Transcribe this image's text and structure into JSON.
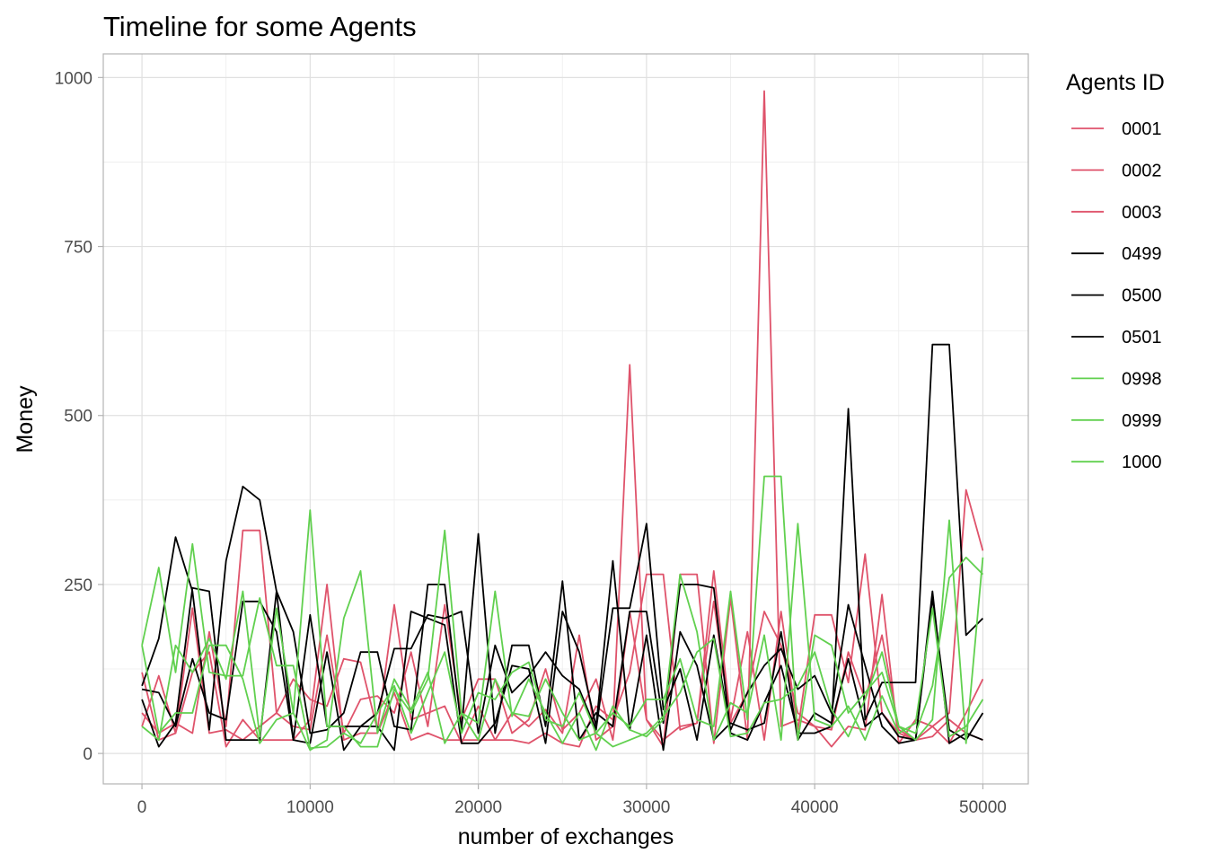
{
  "chart_data": {
    "type": "line",
    "title": "Timeline for some Agents",
    "xlabel": "number of exchanges",
    "ylabel": "Money",
    "xlim": [
      -2300,
      52700
    ],
    "ylim": [
      -45,
      1035
    ],
    "x_ticks": [
      0,
      10000,
      20000,
      30000,
      40000,
      50000
    ],
    "x_tick_labels": [
      "0",
      "10000",
      "20000",
      "30000",
      "40000",
      "50000"
    ],
    "y_ticks": [
      0,
      250,
      500,
      750,
      1000
    ],
    "y_tick_labels": [
      "0",
      "250",
      "500",
      "750",
      "1000"
    ],
    "grid": true,
    "legend": {
      "title": "Agents ID",
      "position": "right"
    },
    "series": [
      {
        "name": "0001",
        "color": "#df536b",
        "x": [
          0,
          1000,
          2000,
          3000,
          4000,
          5000,
          6000,
          7000,
          8000,
          9000,
          10000,
          11000,
          12000,
          13000,
          14000,
          15000,
          16000,
          17000,
          18000,
          19000,
          20000,
          21000,
          22000,
          23000,
          24000,
          25000,
          26000,
          27000,
          28000,
          29000,
          30000,
          31000,
          32000,
          33000,
          34000,
          35000,
          36000,
          37000,
          38000,
          39000,
          40000,
          41000,
          42000,
          43000,
          44000,
          45000,
          46000,
          47000,
          48000,
          49000,
          50000
        ],
        "y": [
          40,
          115,
          30,
          215,
          30,
          35,
          20,
          40,
          60,
          110,
          80,
          70,
          140,
          135,
          35,
          220,
          50,
          60,
          70,
          15,
          70,
          20,
          60,
          40,
          65,
          30,
          175,
          20,
          40,
          575,
          50,
          10,
          265,
          265,
          15,
          230,
          20,
          980,
          40,
          50,
          40,
          10,
          40,
          35,
          235,
          15,
          50,
          40,
          15,
          60,
          110
        ]
      },
      {
        "name": "0002",
        "color": "#df536b",
        "x": [
          0,
          1000,
          2000,
          3000,
          4000,
          5000,
          6000,
          7000,
          8000,
          9000,
          10000,
          11000,
          12000,
          13000,
          14000,
          15000,
          16000,
          17000,
          18000,
          19000,
          20000,
          21000,
          22000,
          23000,
          24000,
          25000,
          26000,
          27000,
          28000,
          29000,
          30000,
          31000,
          32000,
          33000,
          34000,
          35000,
          36000,
          37000,
          38000,
          39000,
          40000,
          41000,
          42000,
          43000,
          44000,
          45000,
          46000,
          47000,
          48000,
          49000,
          50000
        ],
        "y": [
          60,
          30,
          45,
          30,
          180,
          40,
          330,
          330,
          60,
          40,
          35,
          175,
          30,
          80,
          85,
          60,
          150,
          40,
          220,
          50,
          110,
          110,
          30,
          50,
          125,
          35,
          60,
          110,
          20,
          210,
          50,
          20,
          40,
          45,
          270,
          50,
          180,
          20,
          210,
          35,
          205,
          205,
          105,
          295,
          60,
          30,
          20,
          40,
          60,
          390,
          300
        ]
      },
      {
        "name": "0003",
        "color": "#df536b",
        "x": [
          0,
          1000,
          2000,
          3000,
          4000,
          5000,
          6000,
          7000,
          8000,
          9000,
          10000,
          11000,
          12000,
          13000,
          14000,
          15000,
          16000,
          17000,
          18000,
          19000,
          20000,
          21000,
          22000,
          23000,
          24000,
          25000,
          26000,
          27000,
          28000,
          29000,
          30000,
          31000,
          32000,
          33000,
          34000,
          35000,
          36000,
          37000,
          38000,
          39000,
          40000,
          41000,
          42000,
          43000,
          44000,
          45000,
          46000,
          47000,
          48000,
          49000,
          50000
        ],
        "y": [
          120,
          20,
          30,
          120,
          150,
          10,
          50,
          20,
          20,
          20,
          50,
          250,
          20,
          30,
          30,
          90,
          20,
          30,
          20,
          20,
          20,
          20,
          20,
          15,
          30,
          15,
          10,
          70,
          50,
          120,
          265,
          265,
          35,
          45,
          225,
          45,
          90,
          210,
          160,
          60,
          40,
          35,
          150,
          80,
          175,
          35,
          20,
          25,
          50,
          30,
          20
        ]
      },
      {
        "name": "0499",
        "color": "#000000",
        "x": [
          0,
          1000,
          2000,
          3000,
          4000,
          5000,
          6000,
          7000,
          8000,
          9000,
          10000,
          11000,
          12000,
          13000,
          14000,
          15000,
          16000,
          17000,
          18000,
          19000,
          20000,
          21000,
          22000,
          23000,
          24000,
          25000,
          26000,
          27000,
          28000,
          29000,
          30000,
          31000,
          32000,
          33000,
          34000,
          35000,
          36000,
          37000,
          38000,
          39000,
          40000,
          41000,
          42000,
          43000,
          44000,
          45000,
          46000,
          47000,
          48000,
          49000,
          50000
        ],
        "y": [
          100,
          170,
          320,
          240,
          35,
          285,
          395,
          375,
          240,
          180,
          30,
          35,
          60,
          150,
          150,
          40,
          35,
          250,
          250,
          35,
          325,
          30,
          160,
          160,
          40,
          255,
          20,
          60,
          40,
          210,
          210,
          45,
          250,
          250,
          245,
          30,
          20,
          75,
          130,
          30,
          30,
          40,
          510,
          50,
          105,
          105,
          105,
          605,
          605,
          175,
          200
        ]
      },
      {
        "name": "0500",
        "color": "#000000",
        "x": [
          0,
          1000,
          2000,
          3000,
          4000,
          5000,
          6000,
          7000,
          8000,
          9000,
          10000,
          11000,
          12000,
          13000,
          14000,
          15000,
          16000,
          17000,
          18000,
          19000,
          20000,
          21000,
          22000,
          23000,
          24000,
          25000,
          26000,
          27000,
          28000,
          29000,
          30000,
          31000,
          32000,
          33000,
          34000,
          35000,
          36000,
          37000,
          38000,
          39000,
          40000,
          41000,
          42000,
          43000,
          44000,
          45000,
          46000,
          47000,
          48000,
          49000,
          50000
        ],
        "y": [
          80,
          10,
          45,
          245,
          240,
          20,
          20,
          20,
          240,
          20,
          15,
          150,
          5,
          40,
          40,
          5,
          210,
          200,
          190,
          15,
          15,
          45,
          130,
          125,
          15,
          210,
          150,
          40,
          285,
          35,
          175,
          5,
          180,
          130,
          20,
          45,
          35,
          45,
          180,
          20,
          60,
          45,
          140,
          40,
          60,
          25,
          20,
          240,
          15,
          30,
          20
        ]
      },
      {
        "name": "0501",
        "color": "#000000",
        "x": [
          0,
          1000,
          2000,
          3000,
          4000,
          5000,
          6000,
          7000,
          8000,
          9000,
          10000,
          11000,
          12000,
          13000,
          14000,
          15000,
          16000,
          17000,
          18000,
          19000,
          20000,
          21000,
          22000,
          23000,
          24000,
          25000,
          26000,
          27000,
          28000,
          29000,
          30000,
          31000,
          32000,
          33000,
          34000,
          35000,
          36000,
          37000,
          38000,
          39000,
          40000,
          41000,
          42000,
          43000,
          44000,
          45000,
          46000,
          47000,
          48000,
          49000,
          50000
        ],
        "y": [
          95,
          90,
          40,
          140,
          60,
          50,
          225,
          225,
          180,
          20,
          205,
          40,
          40,
          40,
          60,
          155,
          155,
          205,
          200,
          210,
          30,
          160,
          90,
          115,
          150,
          115,
          95,
          35,
          215,
          215,
          340,
          65,
          125,
          20,
          175,
          35,
          90,
          130,
          155,
          95,
          115,
          60,
          220,
          130,
          40,
          15,
          20,
          230,
          35,
          20,
          60
        ]
      },
      {
        "name": "0998",
        "color": "#61d04f",
        "x": [
          0,
          1000,
          2000,
          3000,
          4000,
          5000,
          6000,
          7000,
          8000,
          9000,
          10000,
          11000,
          12000,
          13000,
          14000,
          15000,
          16000,
          17000,
          18000,
          19000,
          20000,
          21000,
          22000,
          23000,
          24000,
          25000,
          26000,
          27000,
          28000,
          29000,
          30000,
          31000,
          32000,
          33000,
          34000,
          35000,
          36000,
          37000,
          38000,
          39000,
          40000,
          41000,
          42000,
          43000,
          44000,
          45000,
          46000,
          47000,
          48000,
          49000,
          50000
        ],
        "y": [
          160,
          30,
          60,
          60,
          160,
          160,
          110,
          15,
          50,
          60,
          360,
          40,
          40,
          10,
          10,
          95,
          60,
          110,
          330,
          60,
          20,
          110,
          60,
          55,
          110,
          60,
          20,
          30,
          60,
          40,
          80,
          80,
          140,
          50,
          40,
          240,
          50,
          410,
          410,
          20,
          175,
          160,
          60,
          90,
          120,
          40,
          30,
          100,
          260,
          290,
          265
        ]
      },
      {
        "name": "0999",
        "color": "#61d04f",
        "x": [
          0,
          1000,
          2000,
          3000,
          4000,
          5000,
          6000,
          7000,
          8000,
          9000,
          10000,
          11000,
          12000,
          13000,
          14000,
          15000,
          16000,
          17000,
          18000,
          19000,
          20000,
          21000,
          22000,
          23000,
          24000,
          25000,
          26000,
          27000,
          28000,
          29000,
          30000,
          31000,
          32000,
          33000,
          34000,
          35000,
          36000,
          37000,
          38000,
          39000,
          40000,
          41000,
          42000,
          43000,
          44000,
          45000,
          46000,
          47000,
          48000,
          49000,
          50000
        ],
        "y": [
          40,
          20,
          160,
          120,
          170,
          110,
          240,
          25,
          215,
          60,
          5,
          20,
          200,
          270,
          30,
          110,
          65,
          120,
          15,
          60,
          45,
          240,
          55,
          110,
          60,
          15,
          60,
          5,
          70,
          35,
          25,
          50,
          265,
          180,
          20,
          75,
          60,
          175,
          20,
          340,
          50,
          40,
          70,
          20,
          85,
          30,
          45,
          215,
          25,
          40,
          80
        ]
      },
      {
        "name": "1000",
        "color": "#61d04f",
        "x": [
          0,
          1000,
          2000,
          3000,
          4000,
          5000,
          6000,
          7000,
          8000,
          9000,
          10000,
          11000,
          12000,
          13000,
          14000,
          15000,
          16000,
          17000,
          18000,
          19000,
          20000,
          21000,
          22000,
          23000,
          24000,
          25000,
          26000,
          27000,
          28000,
          29000,
          30000,
          31000,
          32000,
          33000,
          34000,
          35000,
          36000,
          37000,
          38000,
          39000,
          40000,
          41000,
          42000,
          43000,
          44000,
          45000,
          46000,
          47000,
          48000,
          49000,
          50000
        ],
        "y": [
          160,
          275,
          120,
          310,
          120,
          115,
          115,
          230,
          130,
          130,
          8,
          10,
          30,
          15,
          60,
          100,
          30,
          90,
          150,
          30,
          90,
          80,
          120,
          135,
          50,
          40,
          90,
          30,
          10,
          20,
          30,
          55,
          90,
          150,
          170,
          25,
          30,
          75,
          80,
          100,
          150,
          65,
          25,
          80,
          150,
          40,
          20,
          50,
          345,
          15,
          290
        ]
      }
    ]
  }
}
